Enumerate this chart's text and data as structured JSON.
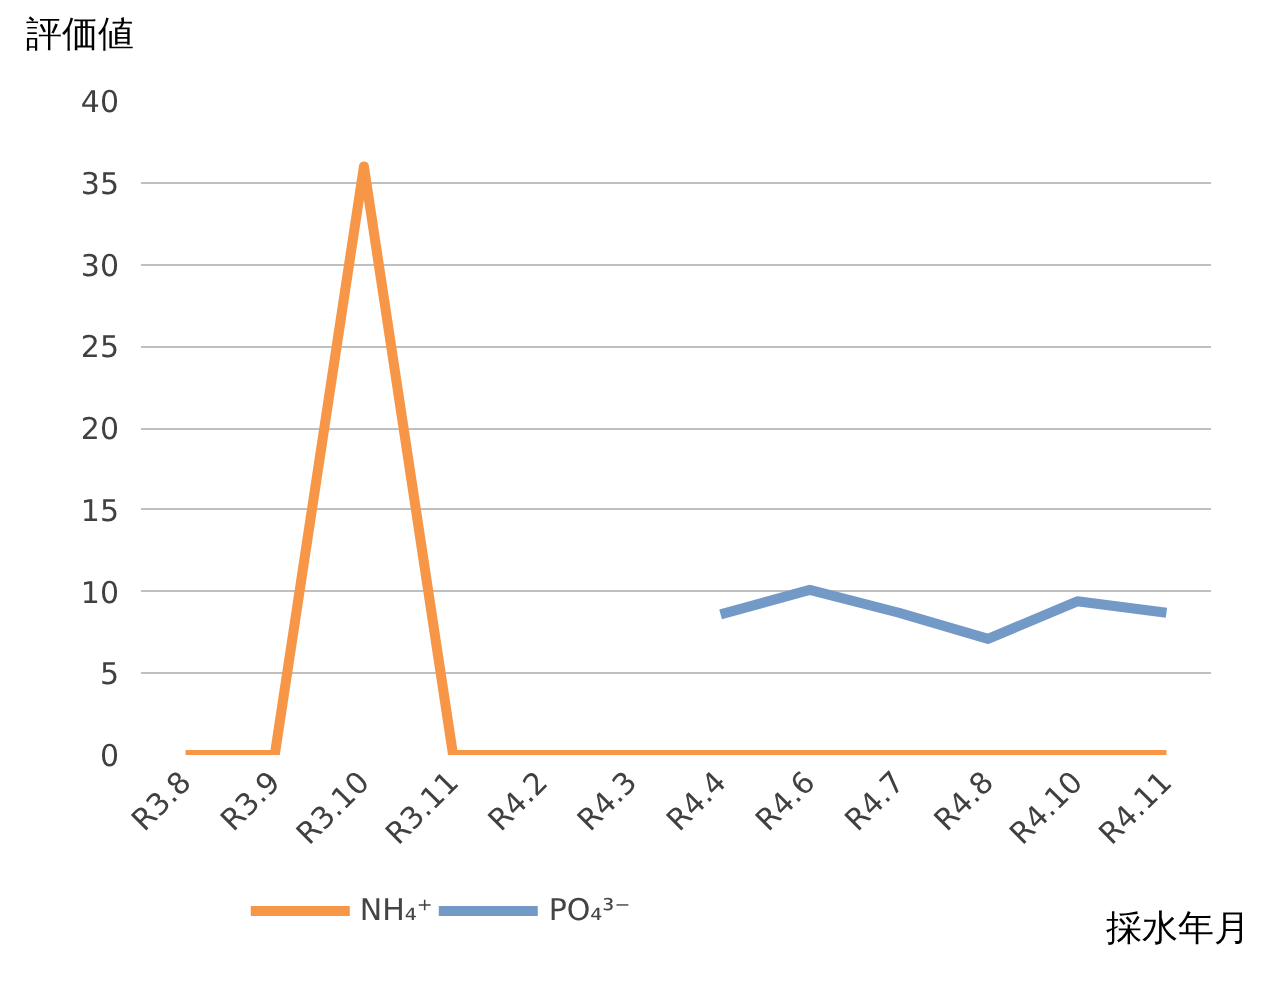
{
  "chart_data": {
    "type": "line",
    "xlabel": "採水年月",
    "ylabel": "評価値",
    "categories": [
      "R3.8",
      "R3.9",
      "R3.10",
      "R3.11",
      "R4.2",
      "R4.3",
      "R4.4",
      "R4.6",
      "R4.7",
      "R4.8",
      "R4.10",
      "R4.11"
    ],
    "series": [
      {
        "name": "NH₄⁺",
        "color": "#f79646",
        "values": [
          0,
          0,
          36,
          0,
          0,
          0,
          0,
          0,
          0,
          0,
          0,
          0
        ]
      },
      {
        "name": "PO₄³⁻",
        "color": "#7399c6",
        "values": [
          null,
          null,
          null,
          null,
          null,
          null,
          8.6,
          10.1,
          8.7,
          7.1,
          9.4,
          8.7
        ]
      }
    ],
    "ylim": [
      0,
      40
    ],
    "yticks": [
      0,
      5,
      10,
      15,
      20,
      25,
      30,
      35,
      40
    ],
    "grid": "y",
    "legend": "bottom",
    "marker": "none",
    "line_style": "solid"
  }
}
